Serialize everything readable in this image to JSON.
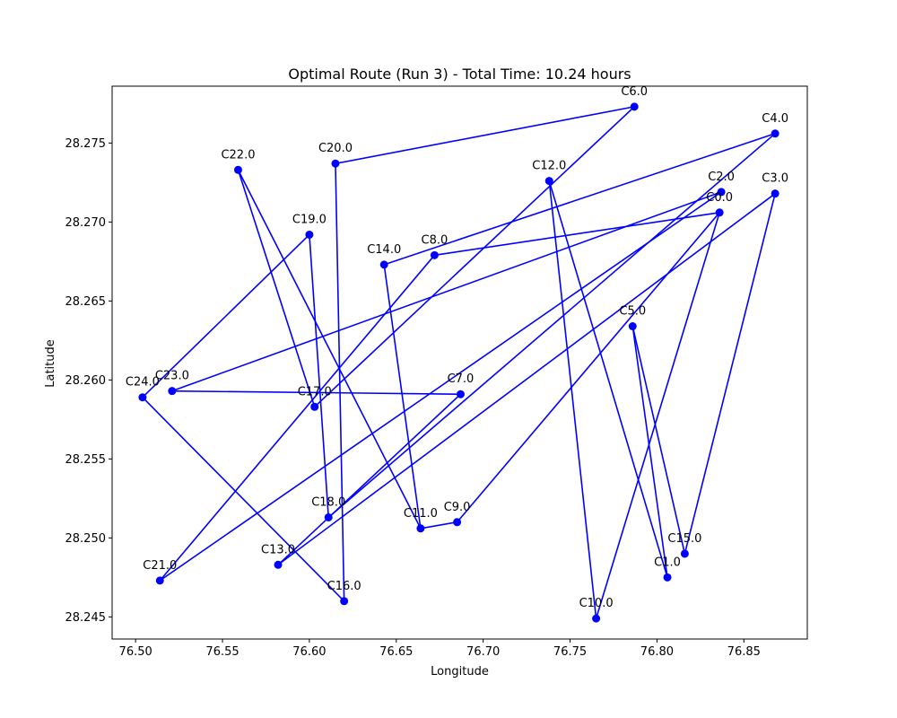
{
  "chart_data": {
    "type": "line",
    "title": "Optimal Route (Run 3) - Total Time: 10.24 hours",
    "xlabel": "Longitude",
    "ylabel": "Latitude",
    "xlim": [
      76.4865,
      76.8865
    ],
    "ylim": [
      28.2436,
      28.2786
    ],
    "xticks": [
      76.5,
      76.55,
      76.6,
      76.65,
      76.7,
      76.75,
      76.8,
      76.85
    ],
    "xtick_labels": [
      "76.50",
      "76.55",
      "76.60",
      "76.65",
      "76.70",
      "76.75",
      "76.80",
      "76.85"
    ],
    "yticks": [
      28.245,
      28.25,
      28.255,
      28.26,
      28.265,
      28.27,
      28.275
    ],
    "ytick_labels": [
      "28.245",
      "28.250",
      "28.255",
      "28.260",
      "28.265",
      "28.270",
      "28.275"
    ],
    "grid": false,
    "line_color": "#0000ff",
    "marker_color": "#0000ff",
    "route": [
      {
        "label": "C0.0",
        "lon": 76.836,
        "lat": 28.2706
      },
      {
        "label": "C8.0",
        "lon": 76.672,
        "lat": 28.2679
      },
      {
        "label": "C21.0",
        "lon": 76.514,
        "lat": 28.2473
      },
      {
        "label": "C2.0",
        "lon": 76.837,
        "lat": 28.2719
      },
      {
        "label": "C23.0",
        "lon": 76.521,
        "lat": 28.2593
      },
      {
        "label": "C7.0",
        "lon": 76.687,
        "lat": 28.2591
      },
      {
        "label": "C13.0",
        "lon": 76.582,
        "lat": 28.2483
      },
      {
        "label": "C3.0",
        "lon": 76.868,
        "lat": 28.2718
      },
      {
        "label": "C15.0",
        "lon": 76.816,
        "lat": 28.249
      },
      {
        "label": "C5.0",
        "lon": 76.786,
        "lat": 28.2634
      },
      {
        "label": "C1.0",
        "lon": 76.806,
        "lat": 28.2475
      },
      {
        "label": "C12.0",
        "lon": 76.738,
        "lat": 28.2726
      },
      {
        "label": "C10.0",
        "lon": 76.765,
        "lat": 28.2449
      },
      {
        "label": "C0.0",
        "lon": 76.836,
        "lat": 28.2706
      },
      {
        "label": "C9.0",
        "lon": 76.685,
        "lat": 28.251
      },
      {
        "label": "C11.0",
        "lon": 76.664,
        "lat": 28.2506
      },
      {
        "label": "C14.0",
        "lon": 76.643,
        "lat": 28.2673
      },
      {
        "label": "C4.0",
        "lon": 76.868,
        "lat": 28.2756
      },
      {
        "label": "C18.0",
        "lon": 76.611,
        "lat": 28.2513
      },
      {
        "label": "C19.0",
        "lon": 76.6,
        "lat": 28.2692
      },
      {
        "label": "C24.0",
        "lon": 76.504,
        "lat": 28.2589
      },
      {
        "label": "C16.0",
        "lon": 76.62,
        "lat": 28.246
      },
      {
        "label": "C20.0",
        "lon": 76.615,
        "lat": 28.2737
      },
      {
        "label": "C6.0",
        "lon": 76.787,
        "lat": 28.2773
      },
      {
        "label": "C17.0",
        "lon": 76.603,
        "lat": 28.2583
      },
      {
        "label": "C22.0",
        "lon": 76.559,
        "lat": 28.2733
      },
      {
        "label": "C11.0",
        "lon": 76.664,
        "lat": 28.2506
      }
    ]
  }
}
